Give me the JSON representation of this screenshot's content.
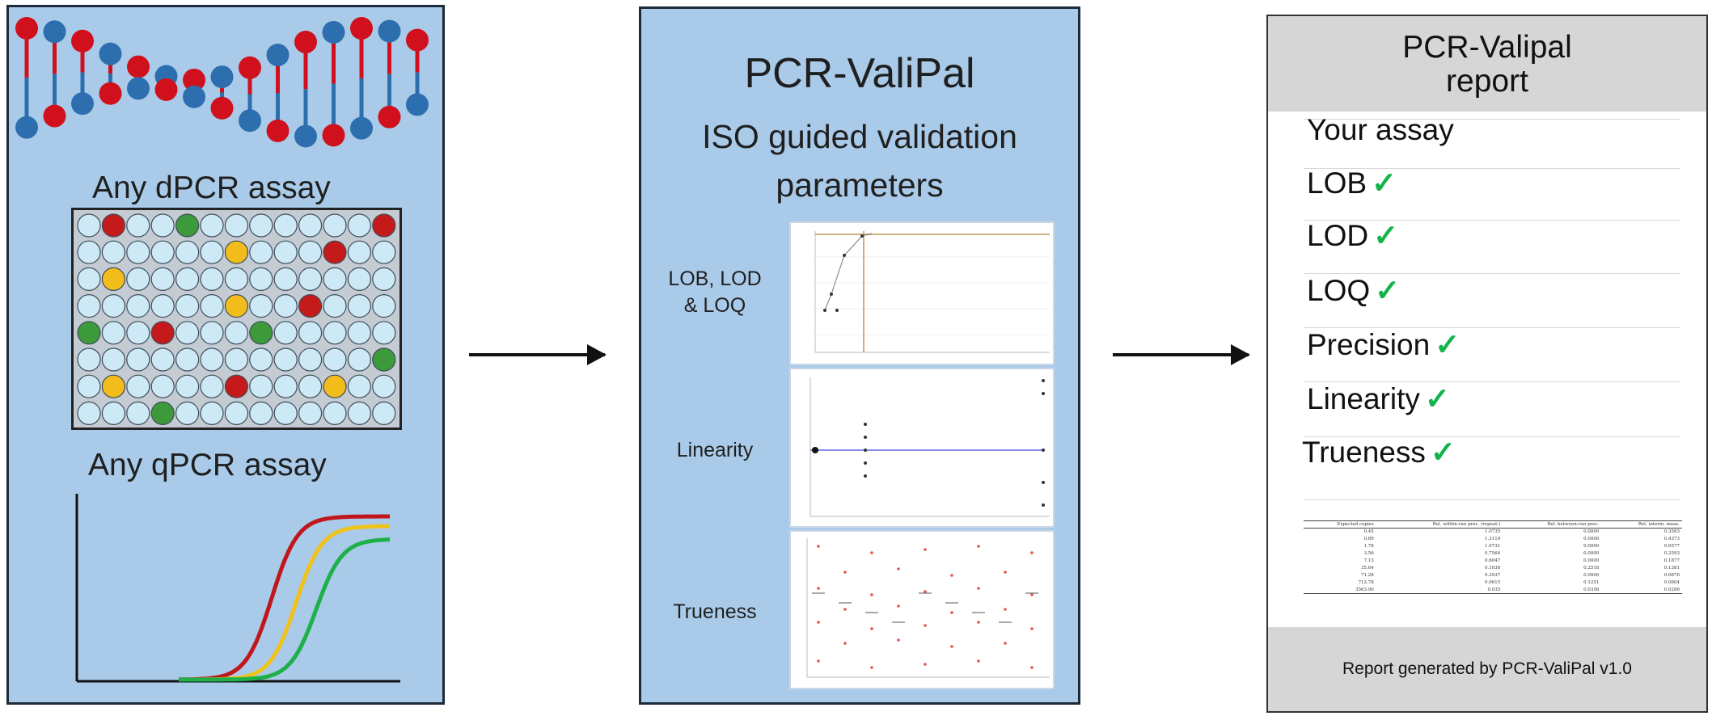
{
  "left_panel": {
    "dpcr_caption": "Any dPCR assay",
    "qpcr_caption": "Any qPCR assay",
    "colors": {
      "panel": "#a9cbe9",
      "strand_red": "#d0101c",
      "strand_blue": "#2d6fae",
      "well": "#cde9f5",
      "well_red": "#c41a1a",
      "well_green": "#3d9a3a",
      "well_yellow": "#f2bd1b"
    },
    "curve_colors": [
      "#c0161c",
      "#f0c21b",
      "#1fb04a"
    ]
  },
  "middle_panel": {
    "title": "PCR-ValiPal",
    "subtitle_line1": "ISO guided validation",
    "subtitle_line2": "parameters",
    "plots": [
      {
        "label_line1": "LOB, LOD",
        "label_line2": "& LOQ"
      },
      {
        "label_line1": "Linearity",
        "label_line2": ""
      },
      {
        "label_line1": "Trueness",
        "label_line2": ""
      }
    ]
  },
  "report": {
    "title_line1": "PCR-Valipal",
    "title_line2": "report",
    "first_row": "Your assay",
    "checked_items": [
      "LOB",
      "LOD",
      "LOQ",
      "Precision",
      "Linearity",
      "Trueness"
    ],
    "check_mark": "✓",
    "table": {
      "headers": [
        "Expected copies",
        "Rel. within-run prec. (repeat.)",
        "Rel. between-run prec.",
        "Rel. interm. meas."
      ],
      "rows": [
        [
          "0.45",
          "1.0735",
          "0.0000",
          "0.3583"
        ],
        [
          "0.89",
          "1.3119",
          "0.0000",
          "0.4373"
        ],
        [
          "1.78",
          "1.0731",
          "0.0000",
          "0.6577"
        ],
        [
          "3.56",
          "0.7564",
          "0.0000",
          "0.2593"
        ],
        [
          "7.13",
          "0.6047",
          "0.0000",
          "0.1877"
        ],
        [
          "35.64",
          "0.1030",
          "0.2518",
          "0.1381"
        ],
        [
          "71.28",
          "0.2937",
          "0.0000",
          "0.0876"
        ],
        [
          "712.78",
          "0.0615",
          "0.1251",
          "0.0604"
        ],
        [
          "3563.90",
          "0.035",
          "0.0358",
          "0.0286"
        ]
      ]
    },
    "footer": "Report generated by PCR-ValiPal v1.0"
  }
}
